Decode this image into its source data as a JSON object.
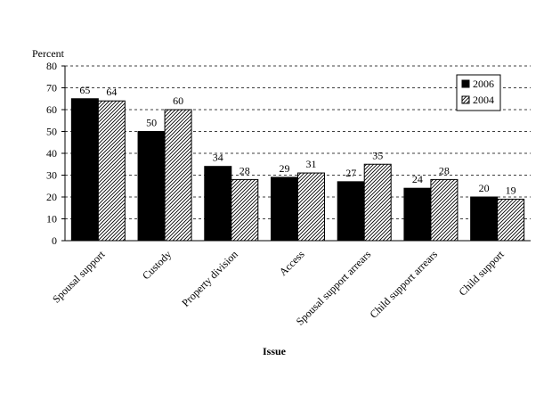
{
  "chart_data": {
    "type": "bar",
    "ylabel": "Percent",
    "xlabel": "Issue",
    "ylim": [
      0,
      80
    ],
    "yticks": [
      0,
      10,
      20,
      30,
      40,
      50,
      60,
      70,
      80
    ],
    "grid": "dashed horizontal",
    "legend_position": "top-right",
    "categories": [
      "Spousal support",
      "Custody",
      "Property division",
      "Access",
      "Spousal support arrears",
      "Child support arrears",
      "Child support"
    ],
    "series": [
      {
        "name": "2006",
        "values": [
          65,
          50,
          34,
          29,
          27,
          24,
          20
        ],
        "color": "#000000",
        "fill": "solid"
      },
      {
        "name": "2004",
        "values": [
          64,
          60,
          28,
          31,
          35,
          28,
          19
        ],
        "color": "#ffffff",
        "fill": "hatched"
      }
    ]
  }
}
